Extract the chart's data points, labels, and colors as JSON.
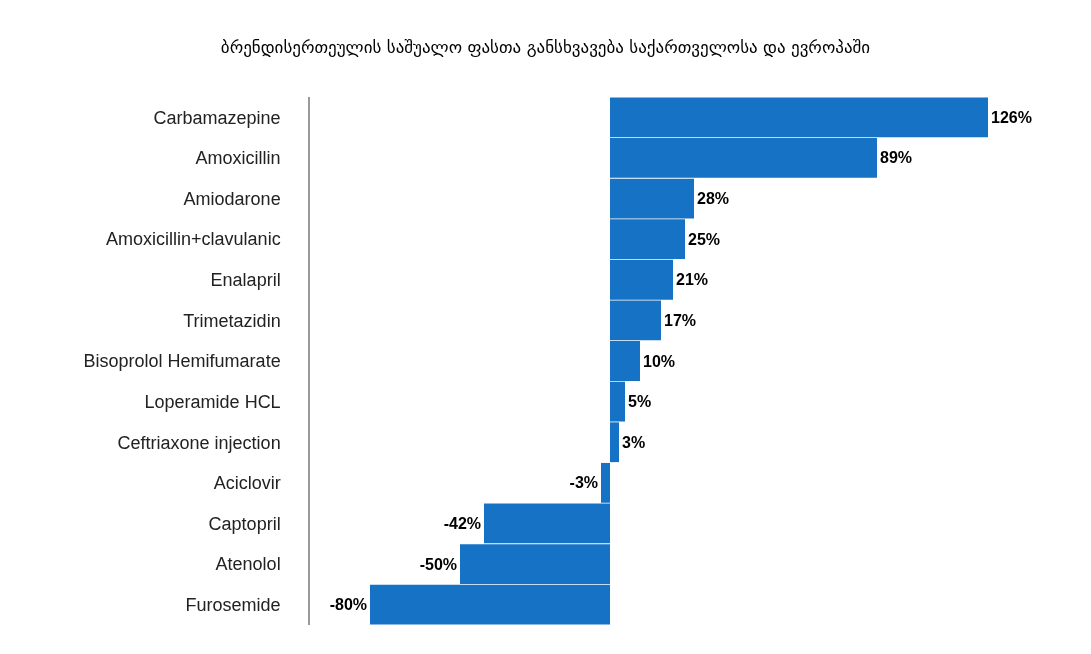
{
  "chart_data": {
    "type": "bar",
    "orientation": "horizontal",
    "title": "ბრენდისერთეულის საშუალო ფასთა განსხვავება საქართველოსა და ევროპაში",
    "categories": [
      "Carbamazepine",
      "Amoxicillin",
      "Amiodarone",
      "Amoxicillin+clavulanic",
      "Enalapril",
      "Trimetazidin",
      "Bisoprolol Hemifumarate",
      "Loperamide HCL",
      "Ceftriaxone injection",
      "Aciclovir",
      "Captopril",
      "Atenolol",
      "Furosemide"
    ],
    "values": [
      126,
      89,
      28,
      25,
      21,
      17,
      10,
      5,
      3,
      -3,
      -42,
      -50,
      -80
    ],
    "value_labels": [
      "126%",
      "89%",
      "28%",
      "25%",
      "21%",
      "17%",
      "10%",
      "5%",
      "3%",
      "-3%",
      "-42%",
      "-50%",
      "-80%"
    ],
    "color": "#1672c4",
    "xlim": [
      -100,
      126
    ],
    "tick_labels": "y"
  }
}
